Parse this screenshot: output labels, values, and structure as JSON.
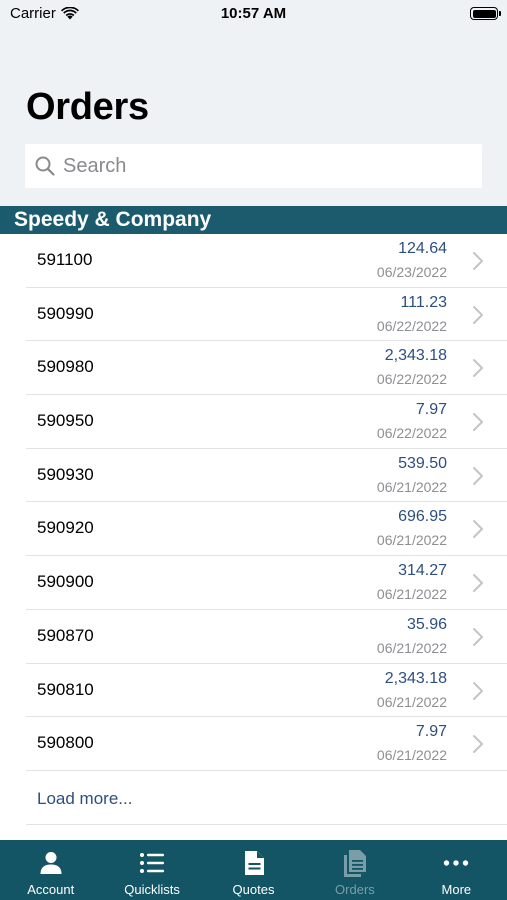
{
  "status_bar": {
    "carrier": "Carrier",
    "time": "10:57 AM"
  },
  "header": {
    "title": "Orders"
  },
  "search": {
    "placeholder": "Search"
  },
  "section": {
    "title": "Speedy & Company"
  },
  "orders": [
    {
      "id": "591100",
      "amount": "124.64",
      "date": "06/23/2022"
    },
    {
      "id": "590990",
      "amount": "111.23",
      "date": "06/22/2022"
    },
    {
      "id": "590980",
      "amount": "2,343.18",
      "date": "06/22/2022"
    },
    {
      "id": "590950",
      "amount": "7.97",
      "date": "06/22/2022"
    },
    {
      "id": "590930",
      "amount": "539.50",
      "date": "06/21/2022"
    },
    {
      "id": "590920",
      "amount": "696.95",
      "date": "06/21/2022"
    },
    {
      "id": "590900",
      "amount": "314.27",
      "date": "06/21/2022"
    },
    {
      "id": "590870",
      "amount": "35.96",
      "date": "06/21/2022"
    },
    {
      "id": "590810",
      "amount": "2,343.18",
      "date": "06/21/2022"
    },
    {
      "id": "590800",
      "amount": "7.97",
      "date": "06/21/2022"
    }
  ],
  "load_more": "Load more...",
  "tabs": [
    {
      "label": "Account",
      "icon": "person-icon",
      "active": true
    },
    {
      "label": "Quicklists",
      "icon": "list-icon",
      "active": true
    },
    {
      "label": "Quotes",
      "icon": "document-icon",
      "active": true
    },
    {
      "label": "Orders",
      "icon": "documents-icon",
      "active": false
    },
    {
      "label": "More",
      "icon": "ellipsis-icon",
      "active": true
    }
  ],
  "colors": {
    "accent": "#1b5b6d",
    "tab_bar": "#135565",
    "amount_text": "#2d4f80",
    "header_bg": "#eff2f5"
  }
}
